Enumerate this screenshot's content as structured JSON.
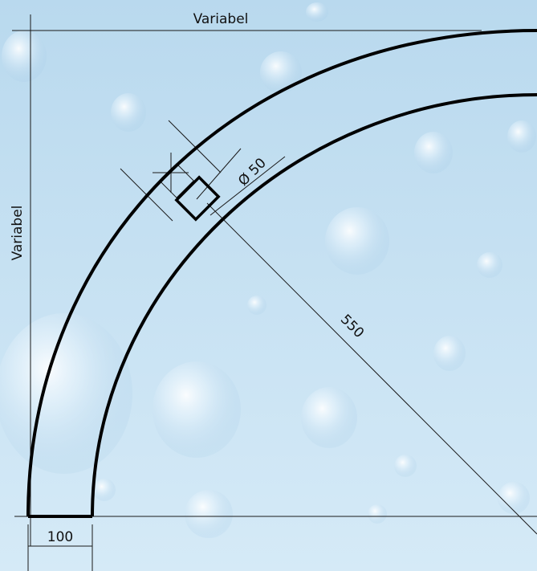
{
  "dimensions": {
    "top_width_label": "Variabel",
    "left_height_label": "Variabel",
    "radius_label": "550",
    "pipe_diameter_label": "Ø 50",
    "channel_width_label": "100"
  },
  "colors": {
    "background_top": "#b8d8ee",
    "background_bottom": "#d8ecf8",
    "channel_stroke": "#000000",
    "dimension_line": "#1a1a1a",
    "bubble": "#ffffff"
  }
}
